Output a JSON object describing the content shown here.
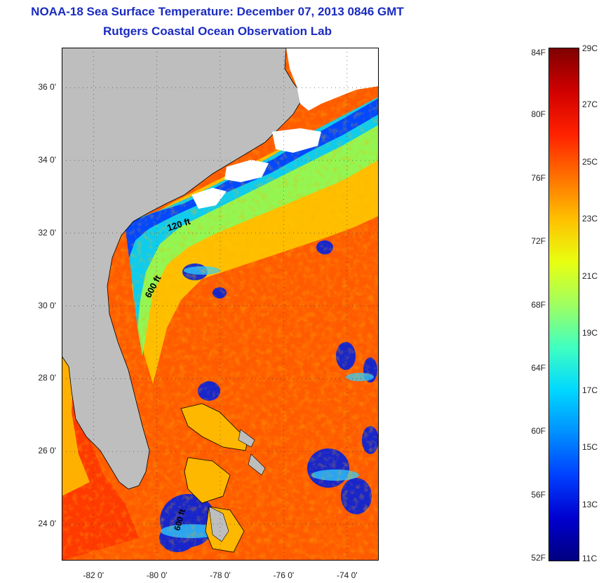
{
  "title": {
    "line1": "NOAA-18 Sea Surface Temperature:  December 07, 2013 0846 GMT",
    "line2": "Rutgers Coastal Ocean Observation Lab"
  },
  "map": {
    "lat_ticks": [
      "36 0'",
      "34 0'",
      "32 0'",
      "30 0'",
      "28 0'",
      "26 0'",
      "24 0'"
    ],
    "lat_values": [
      36,
      34,
      32,
      30,
      28,
      26,
      24
    ],
    "lon_ticks": [
      "-82 0'",
      "-80 0'",
      "-78 0'",
      "-76 0'",
      "-74 0'"
    ],
    "lon_values": [
      -82,
      -80,
      -78,
      -76,
      -74
    ],
    "lat_range": [
      23,
      37.1
    ],
    "lon_range": [
      -83,
      -73
    ],
    "contour_labels": [
      "120 ft",
      "600 ft",
      "600 ft"
    ],
    "land_color": "#bebebe",
    "cloud_color": "#ffffff"
  },
  "colorbar": {
    "fahrenheit_labels": [
      "84F",
      "80F",
      "76F",
      "72F",
      "68F",
      "64F",
      "60F",
      "56F",
      "52F"
    ],
    "fahrenheit_values": [
      84,
      80,
      76,
      72,
      68,
      64,
      60,
      56,
      52
    ],
    "celsius_labels": [
      "29C",
      "27C",
      "25C",
      "23C",
      "21C",
      "19C",
      "17C",
      "15C",
      "13C",
      "11C"
    ],
    "celsius_values": [
      29,
      27,
      25,
      23,
      21,
      19,
      17,
      15,
      13,
      11
    ],
    "range_c": [
      11,
      29
    ],
    "colors": [
      "#00007f",
      "#0000d0",
      "#0040ff",
      "#0090ff",
      "#00d8ff",
      "#40ffc0",
      "#a0ff60",
      "#e8ff10",
      "#ffc000",
      "#ff7000",
      "#ff2000",
      "#d00000",
      "#7f0000"
    ]
  }
}
